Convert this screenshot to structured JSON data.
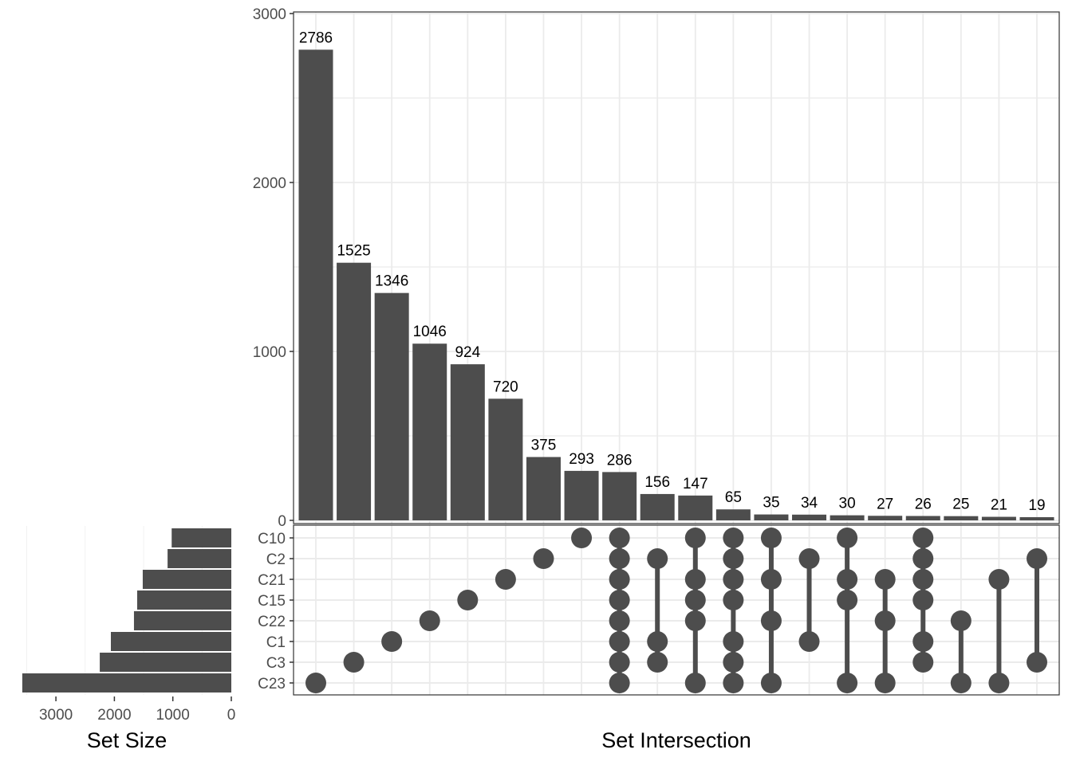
{
  "chart_data": {
    "type": "bar",
    "subtype": "upset",
    "xlabel": "Set Intersection",
    "set_size_label": "Set Size",
    "ylim": [
      0,
      3000
    ],
    "yticks": [
      "0",
      "1000",
      "2000",
      "3000"
    ],
    "set_size_ticks": [
      "3000",
      "2000",
      "1000",
      "0"
    ],
    "set_size_tick_values": [
      3000,
      2000,
      1000,
      0
    ],
    "sets": [
      "C10",
      "C2",
      "C21",
      "C15",
      "C22",
      "C1",
      "C3",
      "C23"
    ],
    "set_sizes": [
      1020,
      1090,
      1515,
      1610,
      1665,
      2060,
      2250,
      3575
    ],
    "intersections": [
      {
        "value": 2786,
        "label": "2786",
        "sets": [
          "C23"
        ]
      },
      {
        "value": 1525,
        "label": "1525",
        "sets": [
          "C3"
        ]
      },
      {
        "value": 1346,
        "label": "1346",
        "sets": [
          "C1"
        ]
      },
      {
        "value": 1046,
        "label": "1046",
        "sets": [
          "C22"
        ]
      },
      {
        "value": 924,
        "label": "924",
        "sets": [
          "C15"
        ]
      },
      {
        "value": 720,
        "label": "720",
        "sets": [
          "C21"
        ]
      },
      {
        "value": 375,
        "label": "375",
        "sets": [
          "C2"
        ]
      },
      {
        "value": 293,
        "label": "293",
        "sets": [
          "C10"
        ]
      },
      {
        "value": 286,
        "label": "286",
        "sets": [
          "C10",
          "C2",
          "C21",
          "C15",
          "C22",
          "C1",
          "C3",
          "C23"
        ]
      },
      {
        "value": 156,
        "label": "156",
        "sets": [
          "C2",
          "C1",
          "C3"
        ]
      },
      {
        "value": 147,
        "label": "147",
        "sets": [
          "C10",
          "C21",
          "C15",
          "C22",
          "C23"
        ]
      },
      {
        "value": 65,
        "label": "65",
        "sets": [
          "C10",
          "C2",
          "C21",
          "C15",
          "C1",
          "C3",
          "C23"
        ]
      },
      {
        "value": 35,
        "label": "35",
        "sets": [
          "C10",
          "C21",
          "C22",
          "C23"
        ]
      },
      {
        "value": 34,
        "label": "34",
        "sets": [
          "C2",
          "C1"
        ]
      },
      {
        "value": 30,
        "label": "30",
        "sets": [
          "C10",
          "C21",
          "C15",
          "C23"
        ]
      },
      {
        "value": 27,
        "label": "27",
        "sets": [
          "C21",
          "C22",
          "C23"
        ]
      },
      {
        "value": 26,
        "label": "26",
        "sets": [
          "C10",
          "C2",
          "C21",
          "C15",
          "C1",
          "C3"
        ]
      },
      {
        "value": 25,
        "label": "25",
        "sets": [
          "C22",
          "C23"
        ]
      },
      {
        "value": 21,
        "label": "21",
        "sets": [
          "C21",
          "C23"
        ]
      },
      {
        "value": 19,
        "label": "19",
        "sets": [
          "C2",
          "C3"
        ]
      }
    ],
    "colors": {
      "bar": "#4d4d4d",
      "grid": "#ebebeb",
      "border": "#333333",
      "text": "#4d4d4d"
    }
  }
}
